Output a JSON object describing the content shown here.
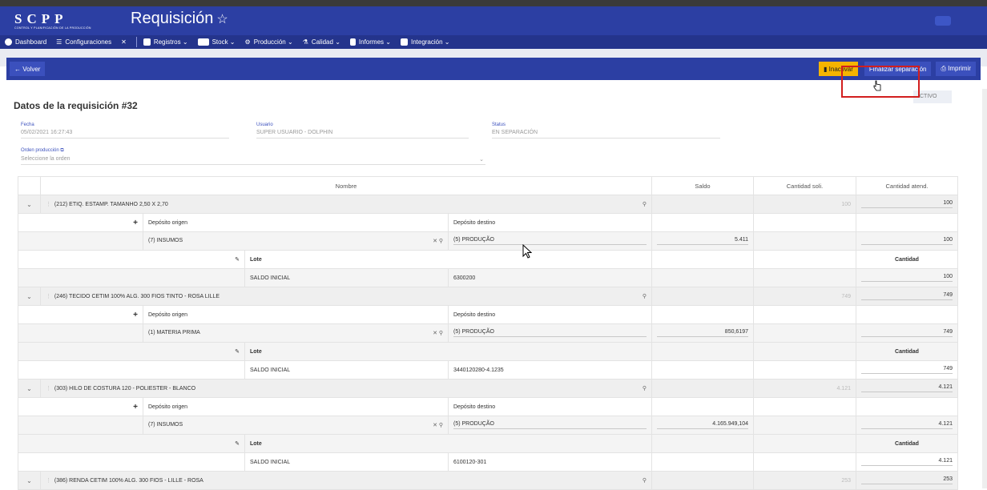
{
  "app": {
    "logo": "SCPP",
    "logo_sub": "CONTROL Y PLANIFICACIÓN DE LA PRODUCCIÓN",
    "title": "Requisición"
  },
  "nav": {
    "items": [
      {
        "label": "Dashboard",
        "icon": "dashboard-icon"
      },
      {
        "label": "Configuraciones",
        "icon": "sliders-icon"
      },
      {
        "label": "",
        "icon": "tools-icon"
      },
      {
        "label": "Registros",
        "icon": "register-icon"
      },
      {
        "label": "Stock",
        "icon": "warehouse-icon"
      },
      {
        "label": "Producción",
        "icon": "gear-icon"
      },
      {
        "label": "Calidad",
        "icon": "flask-icon"
      },
      {
        "label": "Informes",
        "icon": "report-icon"
      },
      {
        "label": "Integración",
        "icon": "integration-icon"
      }
    ]
  },
  "toolbar": {
    "back_label": "Volver",
    "inactivar_label": "Inactivar",
    "finalizar_label": "Finalizar separación",
    "imprimir_label": "Imprimir",
    "status_tag": "CTIVO"
  },
  "requisition": {
    "title": "Datos de la requisición #32",
    "fecha_label": "Fecha",
    "fecha": "05/02/2021 16:27:43",
    "usuario_label": "Usuario",
    "usuario": "SUPER USUARIO - DOLPHIN",
    "status_label": "Status",
    "status": "EN SEPARACIÓN",
    "orden_label": "Orden producción",
    "orden_placeholder": "Seleccione la orden"
  },
  "table": {
    "headers": {
      "nombre": "Nombre",
      "saldo": "Saldo",
      "solicitada": "Cantidad soli.",
      "atendida": "Cantidad atend."
    },
    "labels": {
      "origen": "Depósito origen",
      "destino": "Depósito destino",
      "lote": "Lote",
      "cantidad": "Cantidad"
    },
    "rows": [
      {
        "nombre": "(212) ETIQ. ESTAMP. TAMANHO 2,50 X 2,70",
        "solicitada": "100",
        "atendida": "100",
        "origen": "(7) INSUMOS",
        "destino": "(5) PRODUÇÃO",
        "saldo": "5.411",
        "cantidad_dep": "100",
        "lote": "SALDO INICIAL",
        "lote_code": "6300200",
        "cantidad_lote": "100"
      },
      {
        "nombre": "(246) TECIDO CETIM 100% ALG. 300 FIOS TINTO - ROSA LILLE",
        "solicitada": "749",
        "atendida": "749",
        "origen": "(1) MATERIA PRIMA",
        "destino": "(5) PRODUÇÃO",
        "saldo": "850,6197",
        "cantidad_dep": "749",
        "lote": "SALDO INICIAL",
        "lote_code": "3440120280-4.1235",
        "cantidad_lote": "749"
      },
      {
        "nombre": "(303) HILO DE COSTURA 120 - POLIESTER - BLANCO",
        "solicitada": "4.121",
        "atendida": "4.121",
        "origen": "(7) INSUMOS",
        "destino": "(5) PRODUÇÃO",
        "saldo": "4.165.949,104",
        "cantidad_dep": "4.121",
        "lote": "SALDO INICIAL",
        "lote_code": "6100120-301",
        "cantidad_lote": "4.121"
      },
      {
        "nombre": "(386) RENDA CETIM 100% ALG. 300 FIOS - LILLE - ROSA",
        "solicitada": "253",
        "atendida": "253"
      }
    ]
  },
  "colors": {
    "header": "#2c3fa3",
    "nav": "#24348c",
    "warning": "#f5b400",
    "highlight": "#d21e1e"
  }
}
